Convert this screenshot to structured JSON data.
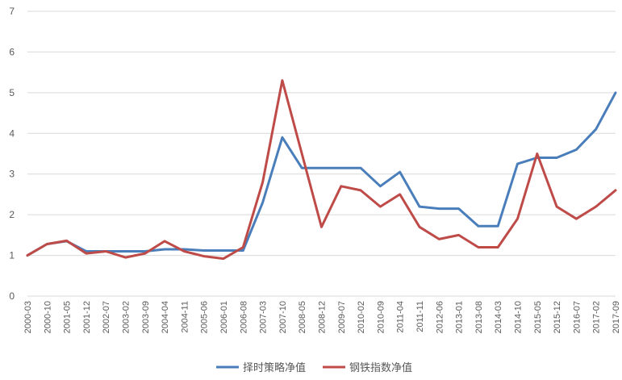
{
  "chart_data": {
    "type": "line",
    "x": [
      "2000-03",
      "2000-10",
      "2001-05",
      "2001-12",
      "2002-07",
      "2003-02",
      "2003-09",
      "2004-04",
      "2004-11",
      "2005-06",
      "2006-01",
      "2006-08",
      "2007-03",
      "2007-10",
      "2008-05",
      "2008-12",
      "2009-07",
      "2010-02",
      "2010-09",
      "2011-04",
      "2011-11",
      "2012-06",
      "2013-01",
      "2013-08",
      "2014-03",
      "2014-10",
      "2015-05",
      "2015-12",
      "2016-07",
      "2017-02",
      "2017-09"
    ],
    "series": [
      {
        "name": "择时策略净值",
        "color": "#4a7ebb",
        "values": [
          1.0,
          1.28,
          1.35,
          1.1,
          1.1,
          1.1,
          1.1,
          1.15,
          1.15,
          1.12,
          1.12,
          1.12,
          2.3,
          3.9,
          3.15,
          3.15,
          3.15,
          3.15,
          2.7,
          3.05,
          2.2,
          2.15,
          2.15,
          1.72,
          1.72,
          3.25,
          3.4,
          3.4,
          3.6,
          4.1,
          5.0
        ]
      },
      {
        "name": "钢铁指数净值",
        "color": "#be4b48",
        "values": [
          1.0,
          1.28,
          1.36,
          1.05,
          1.1,
          0.95,
          1.05,
          1.35,
          1.1,
          0.98,
          0.92,
          1.2,
          2.8,
          5.3,
          3.5,
          1.7,
          2.7,
          2.6,
          2.2,
          2.5,
          1.7,
          1.4,
          1.5,
          1.2,
          1.2,
          1.9,
          3.5,
          2.2,
          1.9,
          2.2,
          2.6
        ]
      }
    ],
    "ylim": [
      0,
      7
    ],
    "yticks": [
      "0",
      "1",
      "2",
      "3",
      "4",
      "5",
      "6",
      "7"
    ],
    "grid": true,
    "legend": "bottom"
  }
}
